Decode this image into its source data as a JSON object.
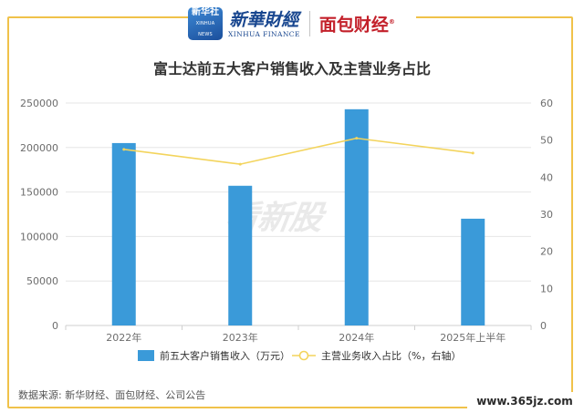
{
  "header": {
    "logo_box_text": "新华社",
    "logo_box_sub": "XINHUA NEWS",
    "brand_cn": "新華財經",
    "brand_en": "XINHUA FINANCE",
    "brand_partner": "面包财经"
  },
  "watermark": "看新股",
  "source": "数据来源: 新华财经、面包财经、公司公告",
  "site_mark": "www.365jz.com",
  "colors": {
    "bar": "#3a9ad9",
    "line": "#f3d45c",
    "frame": "#f0c24a",
    "grid": "#e6e6e6"
  },
  "chart_data": {
    "type": "bar",
    "title": "富士达前五大客户销售收入及主营业务占比",
    "categories": [
      "2022年",
      "2023年",
      "2024年",
      "2025年上半年"
    ],
    "series": [
      {
        "name": "前五大客户销售收入（万元）",
        "type": "bar",
        "axis": "left",
        "values": [
          205000,
          157000,
          243000,
          120000
        ]
      },
      {
        "name": "主营业务收入占比（%，右轴）",
        "type": "line",
        "axis": "right",
        "values": [
          47.5,
          43.5,
          50.5,
          46.5
        ]
      }
    ],
    "y_left": {
      "min": 0,
      "max": 250000,
      "ticks": [
        0,
        50000,
        100000,
        150000,
        200000,
        250000
      ]
    },
    "y_right": {
      "min": 0,
      "max": 60,
      "ticks": [
        0,
        10,
        20,
        30,
        40,
        50,
        60
      ]
    },
    "grid": true,
    "legend": "bottom"
  }
}
